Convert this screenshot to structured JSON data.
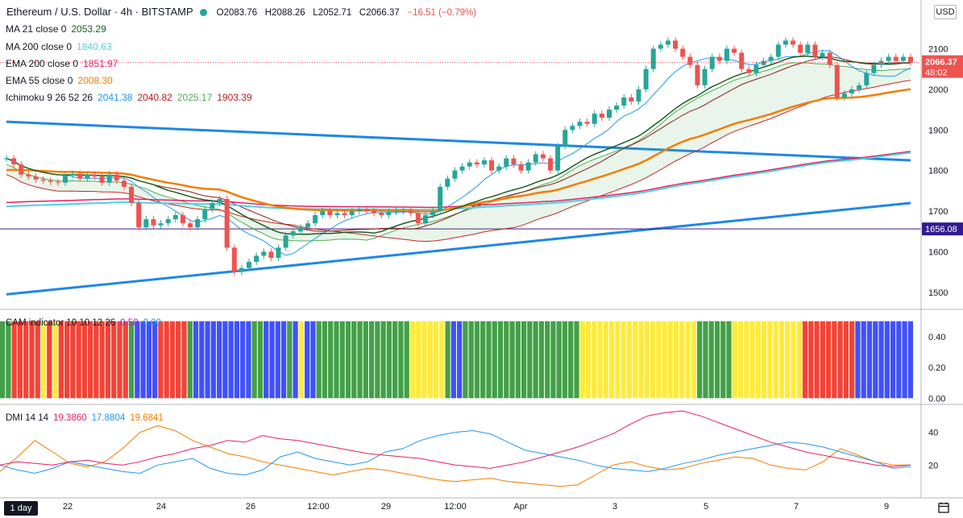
{
  "header": {
    "symbol": "Ethereum / U.S. Dollar · 4h · BITSTAMP",
    "open": "O2083.76",
    "high": "H2088.26",
    "low": "L2052.71",
    "close": "C2066.37",
    "change": "−16.51 (−0.79%)"
  },
  "indicators": [
    {
      "label": "MA 21 close 0",
      "value": "2053.29",
      "color": "#1b5e20"
    },
    {
      "label": "MA 200 close 0",
      "value": "1840.63",
      "color": "#4dd0e1"
    },
    {
      "label": "EMA 200 close 0",
      "value": "1851.97",
      "color": "#e91e63"
    },
    {
      "label": "EMA 55 close 0",
      "value": "2008.30",
      "color": "#f57c00"
    }
  ],
  "ichimoku": {
    "label": "Ichimoku 9 26 52 26",
    "values": [
      "2041.38",
      "2040.82",
      "2025.17",
      "1903.39"
    ],
    "colors": [
      "#2196f3",
      "#b71c1c",
      "#4caf50",
      "#b71c1c"
    ]
  },
  "currency": "USD",
  "price_label": "2066.37",
  "countdown": "48:02",
  "level_label": "1656.08",
  "cam": {
    "label": "CAM indicator 10 10 12 26",
    "values": [
      "0.50",
      "0.00"
    ],
    "colors": [
      "#9c27b0",
      "#2196f3"
    ]
  },
  "dmi": {
    "label": "DMI 14 14",
    "values": [
      "19.3860",
      "17.8804",
      "19.6841"
    ],
    "colors": [
      "#e91e63",
      "#2196f3",
      "#f57c00"
    ]
  },
  "timeframe": "1 day",
  "chart_data": {
    "type": "candlestick",
    "price_axis": {
      "ticks": [
        1500,
        1600,
        1700,
        1800,
        1900,
        2000,
        2100
      ],
      "ylim": [
        1460,
        2220
      ]
    },
    "x_labels": [
      "22",
      "24",
      "26",
      "12:00",
      "29",
      "12:00",
      "Apr",
      "3",
      "5",
      "7",
      "9"
    ],
    "ohlc_closes": [
      1830,
      1815,
      1790,
      1785,
      1778,
      1775,
      1772,
      1770,
      1788,
      1792,
      1780,
      1790,
      1785,
      1770,
      1790,
      1775,
      1760,
      1720,
      1660,
      1680,
      1665,
      1670,
      1680,
      1690,
      1670,
      1660,
      1680,
      1705,
      1720,
      1730,
      1610,
      1550,
      1560,
      1575,
      1590,
      1600,
      1585,
      1610,
      1640,
      1650,
      1660,
      1670,
      1690,
      1700,
      1690,
      1695,
      1690,
      1700,
      1705,
      1700,
      1695,
      1690,
      1698,
      1700,
      1700,
      1695,
      1670,
      1690,
      1700,
      1760,
      1780,
      1800,
      1810,
      1820,
      1815,
      1825,
      1800,
      1810,
      1830,
      1815,
      1800,
      1820,
      1840,
      1830,
      1800,
      1860,
      1900,
      1910,
      1920,
      1915,
      1940,
      1930,
      1950,
      1960,
      1980,
      1970,
      2000,
      2050,
      2100,
      2110,
      2120,
      2100,
      2080,
      2060,
      2010,
      2050,
      2080,
      2070,
      2100,
      2090,
      2050,
      2040,
      2060,
      2070,
      2080,
      2110,
      2120,
      2110,
      2090,
      2110,
      2080,
      2090,
      2060,
      1980,
      1990,
      2000,
      2010,
      2040,
      2060,
      2070,
      2080,
      2070,
      2080,
      2066
    ],
    "ma21_close": 2053.29,
    "ma200_close": 1840.63,
    "ema200_close": 1851.97,
    "ema55_close": 2008.3,
    "ichimoku": [
      2041.38,
      2040.82,
      2025.17,
      1903.39
    ],
    "horizontal_level": 1656.08,
    "trendlines": [
      {
        "from": [
          0,
          1920
        ],
        "to": [
          123,
          1825
        ]
      },
      {
        "from": [
          0,
          1495
        ],
        "to": [
          123,
          1720
        ]
      }
    ],
    "cam_indicator": {
      "ticks": [
        0.0,
        0.2,
        0.4
      ],
      "ylim": [
        -0.03,
        0.53
      ],
      "value_a": 0.5,
      "value_b": 0.0,
      "colors_sequence": "GGRRRRRYRYRRRRRRRRRRRRGBBBBRRRRRGBBBBBBBBBBGGBBBBGBYBBGGGGGGGGGGGGGGGGYYYYYYGBBGGGGGGGGGGGGGGGGGGGGYYYYYYYYYYYYYYYYYYYYGGGGGGYYYYYYYYYYYYRRRRRRRRRBBBBBBBBBB"
    },
    "dmi": {
      "ticks": [
        20,
        40
      ],
      "ylim": [
        0,
        56
      ],
      "plus_di": [
        20,
        22,
        21,
        20,
        22,
        23,
        21,
        20,
        22,
        25,
        27,
        30,
        32,
        35,
        34,
        38,
        36,
        35,
        33,
        31,
        29,
        27,
        26,
        25,
        24,
        22,
        20,
        19,
        18,
        20,
        22,
        25,
        28,
        31,
        35,
        39,
        45,
        50,
        52,
        53,
        50,
        46,
        42,
        38,
        34,
        31,
        28,
        26,
        24,
        22,
        20,
        19,
        20
      ],
      "minus_di": [
        20,
        17,
        15,
        18,
        22,
        20,
        18,
        16,
        15,
        20,
        22,
        24,
        18,
        15,
        14,
        17,
        25,
        28,
        24,
        22,
        20,
        22,
        28,
        30,
        35,
        38,
        40,
        41,
        39,
        34,
        29,
        27,
        25,
        23,
        20,
        18,
        17,
        16,
        18,
        21,
        23,
        26,
        28,
        30,
        32,
        34,
        33,
        31,
        28,
        25,
        22,
        18,
        19
      ],
      "adx": [
        16,
        25,
        35,
        28,
        21,
        19,
        22,
        30,
        40,
        44,
        41,
        35,
        31,
        27,
        25,
        22,
        20,
        18,
        16,
        14,
        16,
        18,
        17,
        15,
        13,
        11,
        10,
        11,
        12,
        10,
        9,
        8,
        7,
        8,
        14,
        20,
        22,
        19,
        17,
        18,
        21,
        23,
        25,
        24,
        20,
        18,
        17,
        22,
        30,
        26,
        22,
        20,
        20
      ]
    }
  }
}
